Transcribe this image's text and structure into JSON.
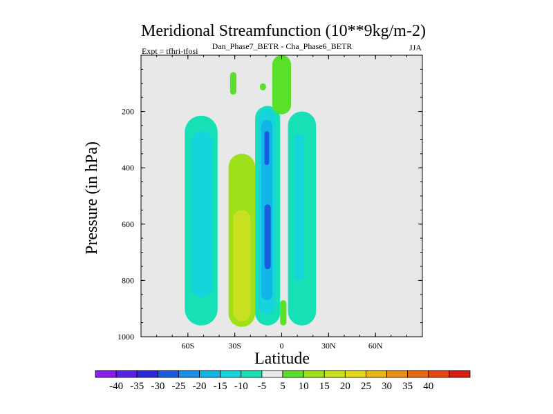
{
  "colors": {
    "background": "#e8e8e8",
    "frame": "#000000",
    "palette": [
      "#8c1eea",
      "#5a1ee6",
      "#2a28d8",
      "#1a5ce0",
      "#1a8ee8",
      "#12b6e6",
      "#16d4dc",
      "#18e0b6",
      "#e8e8e8",
      "#58e02a",
      "#9ee01a",
      "#c8e020",
      "#e4d81c",
      "#e8b418",
      "#e89016",
      "#e86814",
      "#e44812",
      "#d81e10"
    ]
  },
  "chart_data": {
    "type": "heatmap",
    "title": "Meridional Streamfunction (10**9kg/m-2)",
    "subtitle_center": "Dan_Phase7_BETR - Cha_Phase6_BETR",
    "subtitle_left": "Expt = tfhri-tfosi",
    "subtitle_right": "JJA",
    "xlabel": "Latitude",
    "ylabel": "Pressure (in hPa)",
    "xlim": [
      -90,
      90
    ],
    "ylim": [
      1000,
      0
    ],
    "x_ticks": [
      {
        "value": -60,
        "label": "60S"
      },
      {
        "value": -30,
        "label": "30S"
      },
      {
        "value": 0,
        "label": "0"
      },
      {
        "value": 30,
        "label": "30N"
      },
      {
        "value": 60,
        "label": "60N"
      }
    ],
    "y_ticks": [
      {
        "value": 200,
        "label": "200"
      },
      {
        "value": 400,
        "label": "400"
      },
      {
        "value": 600,
        "label": "600"
      },
      {
        "value": 800,
        "label": "800"
      },
      {
        "value": 1000,
        "label": "1000"
      }
    ],
    "colorbar_labels": [
      "-40",
      "-35",
      "-30",
      "-25",
      "-20",
      "-15",
      "-10",
      "-5",
      "5",
      "10",
      "15",
      "20",
      "25",
      "30",
      "35",
      "40"
    ],
    "regions": [
      {
        "name": "cell-a-outer",
        "value": -10,
        "lat": [
          -62,
          -41
        ],
        "p": [
          215,
          960
        ]
      },
      {
        "name": "cell-a-inner",
        "value": -15,
        "lat": [
          -58,
          -44
        ],
        "p": [
          270,
          860
        ]
      },
      {
        "name": "cell-b-outer",
        "value": 10,
        "lat": [
          -34,
          -17
        ],
        "p": [
          350,
          965
        ]
      },
      {
        "name": "cell-b-inner",
        "value": 15,
        "lat": [
          -31,
          -20
        ],
        "p": [
          550,
          945
        ]
      },
      {
        "name": "cell-c-outer",
        "value": -10,
        "lat": [
          -17,
          -1
        ],
        "p": [
          180,
          960
        ]
      },
      {
        "name": "cell-c-mid",
        "value": -15,
        "lat": [
          -15,
          -4
        ],
        "p": [
          190,
          920
        ]
      },
      {
        "name": "cell-c-inner",
        "value": -20,
        "lat": [
          -13,
          -6
        ],
        "p": [
          230,
          870
        ]
      },
      {
        "name": "cell-c-core-upper",
        "value": -30,
        "lat": [
          -11,
          -8
        ],
        "p": [
          270,
          390
        ]
      },
      {
        "name": "cell-c-core-lower",
        "value": -30,
        "lat": [
          -11,
          -7
        ],
        "p": [
          530,
          760
        ]
      },
      {
        "name": "cell-d-outer",
        "value": -10,
        "lat": [
          4,
          22
        ],
        "p": [
          200,
          960
        ]
      },
      {
        "name": "cell-d-inner",
        "value": -15,
        "lat": [
          8,
          14
        ],
        "p": [
          280,
          800
        ]
      },
      {
        "name": "upper-blob-1",
        "value": 5,
        "lat": [
          -33,
          -29
        ],
        "p": [
          60,
          140
        ]
      },
      {
        "name": "upper-blob-2",
        "value": 5,
        "lat": [
          -6,
          6
        ],
        "p": [
          0,
          210
        ]
      },
      {
        "name": "upper-blob-3",
        "value": 5,
        "lat": [
          -14,
          -10
        ],
        "p": [
          100,
          125
        ]
      },
      {
        "name": "lower-blob-eq",
        "value": 5,
        "lat": [
          -1,
          3
        ],
        "p": [
          870,
          960
        ]
      }
    ]
  }
}
